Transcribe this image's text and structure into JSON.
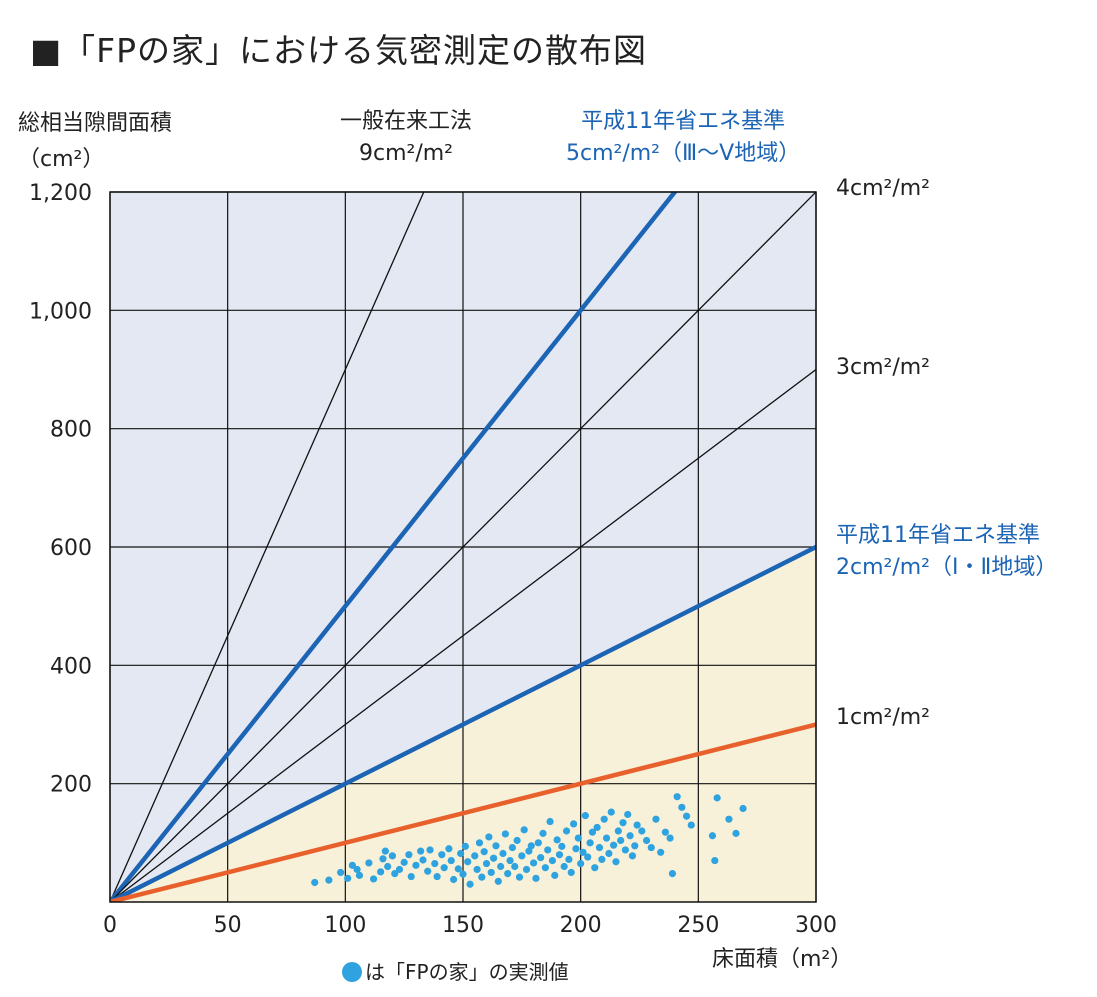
{
  "title": "■「FPの家」における気密測定の散布図",
  "y_axis_label": [
    "総相当隙間面積",
    "（cm²）"
  ],
  "x_axis_label": "床面積（m²）",
  "legend_text": "は「FPの家」の実測値",
  "line_labels": {
    "l9": [
      "一般在来工法",
      "9cm²/m²"
    ],
    "l5": [
      "平成11年省エネ基準",
      "5cm²/m²（Ⅲ〜Ⅴ地域）"
    ],
    "l4": "4cm²/m²",
    "l3": "3cm²/m²",
    "l2": [
      "平成11年省エネ基準",
      "2cm²/m²（Ⅰ・Ⅱ地域）"
    ],
    "l1": "1cm²/m²"
  },
  "colors": {
    "plot_bg": "#e3e8f3",
    "accepted_region": "#f8f1d9",
    "standard_line": "#1c64b4",
    "target_line": "#e8602c",
    "thin_line": "#111111",
    "points": "#2ea3e0"
  },
  "chart_data": {
    "type": "scatter",
    "xlim": [
      0,
      300
    ],
    "ylim": [
      0,
      1200
    ],
    "x_ticks": [
      "0",
      "50",
      "100",
      "150",
      "200",
      "250",
      "300"
    ],
    "y_ticks": [
      "200",
      "400",
      "600",
      "800",
      "1,000",
      "1,200"
    ],
    "x_tick_values": [
      0,
      50,
      100,
      150,
      200,
      250,
      300
    ],
    "y_tick_values": [
      200,
      400,
      600,
      800,
      1000,
      1200
    ],
    "grid": true,
    "reference_lines": [
      {
        "id": "l9",
        "slope": 9,
        "style": "thin"
      },
      {
        "id": "l5",
        "slope": 5,
        "style": "standard"
      },
      {
        "id": "l4",
        "slope": 4,
        "style": "thin"
      },
      {
        "id": "l3",
        "slope": 3,
        "style": "thin"
      },
      {
        "id": "l2",
        "slope": 2,
        "style": "standard"
      },
      {
        "id": "l1",
        "slope": 1,
        "style": "target"
      }
    ],
    "series": [
      {
        "name": "「FPの家」の実測値",
        "points": [
          [
            87,
            33
          ],
          [
            93,
            37
          ],
          [
            98,
            50
          ],
          [
            101,
            40
          ],
          [
            103,
            62
          ],
          [
            105,
            55
          ],
          [
            106,
            45
          ],
          [
            110,
            66
          ],
          [
            112,
            39
          ],
          [
            115,
            51
          ],
          [
            116,
            73
          ],
          [
            117,
            86
          ],
          [
            118,
            60
          ],
          [
            120,
            78
          ],
          [
            121,
            48
          ],
          [
            123,
            55
          ],
          [
            125,
            67
          ],
          [
            127,
            80
          ],
          [
            128,
            43
          ],
          [
            130,
            62
          ],
          [
            132,
            86
          ],
          [
            133,
            71
          ],
          [
            135,
            52
          ],
          [
            136,
            88
          ],
          [
            138,
            65
          ],
          [
            139,
            43
          ],
          [
            141,
            80
          ],
          [
            142,
            58
          ],
          [
            144,
            90
          ],
          [
            145,
            70
          ],
          [
            146,
            38
          ],
          [
            148,
            56
          ],
          [
            149,
            82
          ],
          [
            150,
            47
          ],
          [
            151,
            94
          ],
          [
            152,
            68
          ],
          [
            153,
            30
          ],
          [
            155,
            78
          ],
          [
            156,
            55
          ],
          [
            157,
            100
          ],
          [
            158,
            42
          ],
          [
            159,
            85
          ],
          [
            160,
            65
          ],
          [
            161,
            110
          ],
          [
            162,
            50
          ],
          [
            163,
            74
          ],
          [
            164,
            95
          ],
          [
            165,
            35
          ],
          [
            166,
            60
          ],
          [
            167,
            82
          ],
          [
            168,
            115
          ],
          [
            169,
            48
          ],
          [
            170,
            70
          ],
          [
            171,
            92
          ],
          [
            172,
            60
          ],
          [
            173,
            104
          ],
          [
            174,
            42
          ],
          [
            175,
            78
          ],
          [
            176,
            122
          ],
          [
            177,
            55
          ],
          [
            178,
            86
          ],
          [
            179,
            95
          ],
          [
            180,
            66
          ],
          [
            181,
            40
          ],
          [
            182,
            100
          ],
          [
            183,
            75
          ],
          [
            184,
            116
          ],
          [
            185,
            58
          ],
          [
            186,
            88
          ],
          [
            187,
            136
          ],
          [
            188,
            70
          ],
          [
            189,
            45
          ],
          [
            190,
            105
          ],
          [
            191,
            80
          ],
          [
            192,
            94
          ],
          [
            193,
            60
          ],
          [
            194,
            120
          ],
          [
            195,
            72
          ],
          [
            196,
            50
          ],
          [
            197,
            132
          ],
          [
            198,
            90
          ],
          [
            199,
            108
          ],
          [
            200,
            65
          ],
          [
            201,
            84
          ],
          [
            202,
            146
          ],
          [
            203,
            76
          ],
          [
            204,
            100
          ],
          [
            205,
            118
          ],
          [
            206,
            58
          ],
          [
            207,
            126
          ],
          [
            208,
            92
          ],
          [
            209,
            72
          ],
          [
            210,
            140
          ],
          [
            211,
            108
          ],
          [
            212,
            82
          ],
          [
            213,
            152
          ],
          [
            214,
            96
          ],
          [
            215,
            68
          ],
          [
            216,
            120
          ],
          [
            217,
            104
          ],
          [
            218,
            134
          ],
          [
            219,
            88
          ],
          [
            220,
            148
          ],
          [
            221,
            112
          ],
          [
            222,
            78
          ],
          [
            223,
            95
          ],
          [
            224,
            130
          ],
          [
            226,
            120
          ],
          [
            228,
            104
          ],
          [
            230,
            92
          ],
          [
            232,
            140
          ],
          [
            234,
            84
          ],
          [
            236,
            118
          ],
          [
            238,
            108
          ],
          [
            239,
            48
          ],
          [
            241,
            178
          ],
          [
            243,
            160
          ],
          [
            245,
            145
          ],
          [
            247,
            130
          ],
          [
            256,
            112
          ],
          [
            257,
            70
          ],
          [
            258,
            176
          ],
          [
            263,
            140
          ],
          [
            266,
            116
          ],
          [
            269,
            158
          ]
        ]
      }
    ]
  }
}
